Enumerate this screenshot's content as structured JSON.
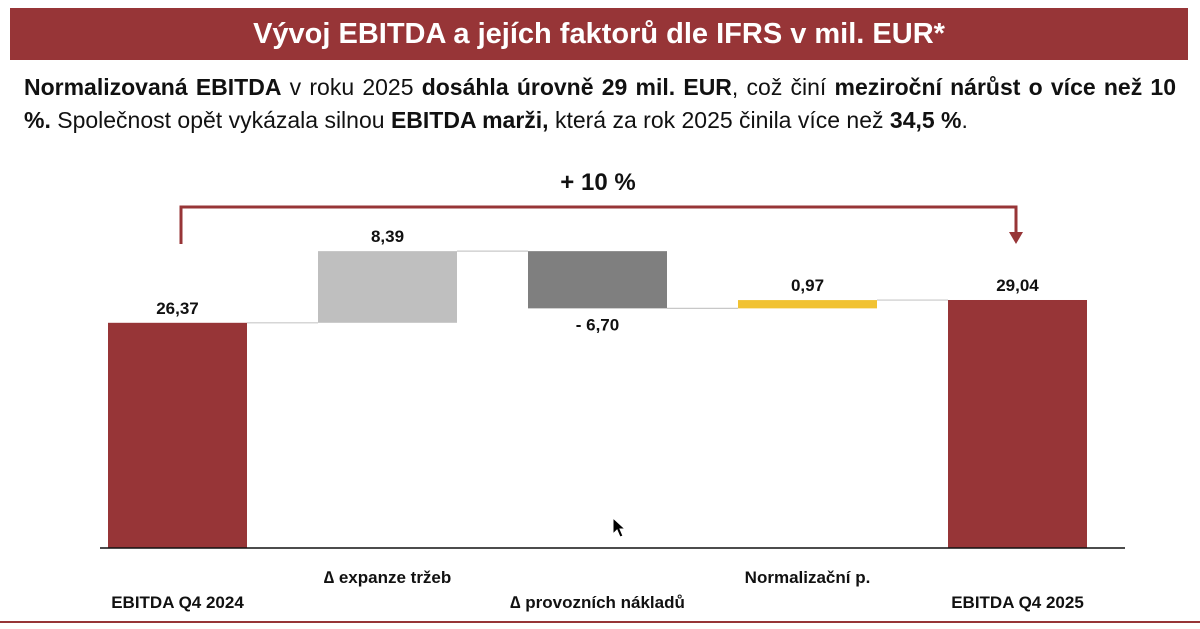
{
  "header": {
    "title": "Vývoj EBITDA a jejích faktorů dle IFRS v mil. EUR*"
  },
  "summary": {
    "s1": "Normalizovaná EBITDA",
    "s2": " v roku 2025 ",
    "s3": "dosáhla úrovně 29 mil. EUR",
    "s4": ", což činí ",
    "s5": "meziroční nárůst o více než 10 %.",
    "s6": " Společnost opět vykázala silnou ",
    "s7": "EBITDA marži,",
    "s8": " která za rok 2025 činila více než ",
    "s9": "34,5 %",
    "s10": "."
  },
  "chart_data": {
    "type": "waterfall",
    "categories": [
      "EBITDA Q4 2024",
      "∆ expanze tržeb",
      "∆ provozních nákladů",
      "Normalizační p.",
      "EBITDA Q4 2025"
    ],
    "values": [
      26.37,
      8.39,
      -6.7,
      0.97,
      29.04
    ],
    "labels": [
      "26,37",
      "8,39",
      "- 6,70",
      "0,97",
      "29,04"
    ],
    "kinds": [
      "total",
      "delta",
      "delta",
      "delta",
      "total"
    ],
    "colors": [
      "#973537",
      "#bfbfbf",
      "#7f7f7f",
      "#f1c232",
      "#973537"
    ],
    "annotation": "+ 10 %",
    "ylim": [
      0,
      29.04
    ]
  }
}
